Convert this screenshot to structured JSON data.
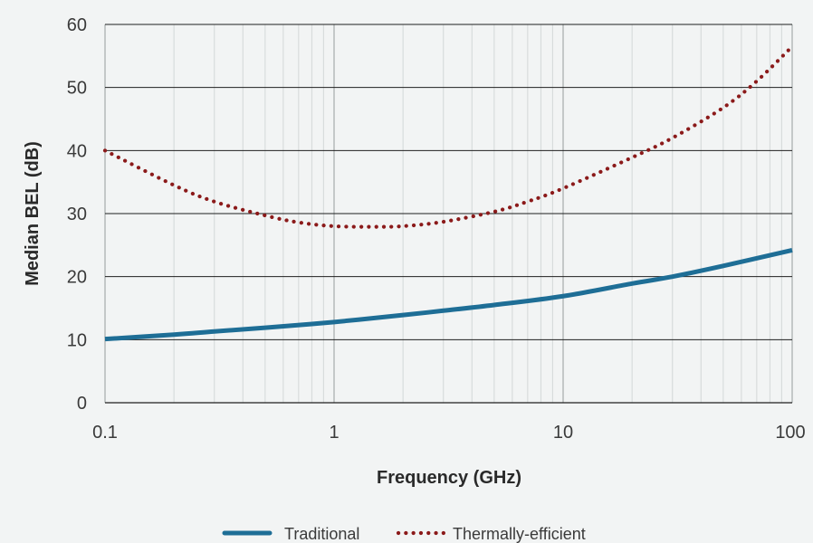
{
  "chart_data": {
    "type": "line",
    "title": "",
    "xlabel": "Frequency (GHz)",
    "ylabel": "Median BEL (dB)",
    "x_scale": "log",
    "xlim": [
      0.1,
      100
    ],
    "ylim": [
      0,
      60
    ],
    "x_ticks": [
      {
        "value": 0.1,
        "label": "0.1"
      },
      {
        "value": 1,
        "label": "1"
      },
      {
        "value": 10,
        "label": "10"
      },
      {
        "value": 100,
        "label": "100"
      }
    ],
    "y_ticks": [
      {
        "value": 0,
        "label": "0"
      },
      {
        "value": 10,
        "label": "10"
      },
      {
        "value": 20,
        "label": "20"
      },
      {
        "value": 30,
        "label": "30"
      },
      {
        "value": 40,
        "label": "40"
      },
      {
        "value": 50,
        "label": "50"
      },
      {
        "value": 60,
        "label": "60"
      }
    ],
    "grid": true,
    "legend_position": "bottom-center",
    "series": [
      {
        "name": "Traditional",
        "color": "#1e6e96",
        "style": "solid",
        "points": [
          [
            0.1,
            10.1
          ],
          [
            0.2,
            10.8
          ],
          [
            0.3,
            11.3
          ],
          [
            0.5,
            11.9
          ],
          [
            1,
            12.8
          ],
          [
            2,
            13.9
          ],
          [
            3,
            14.6
          ],
          [
            5,
            15.5
          ],
          [
            10,
            16.9
          ],
          [
            20,
            18.9
          ],
          [
            30,
            20.0
          ],
          [
            50,
            21.7
          ],
          [
            100,
            24.2
          ]
        ]
      },
      {
        "name": "Thermally-efficient",
        "color": "#8b1a1a",
        "style": "dotted",
        "points": [
          [
            0.1,
            40.0
          ],
          [
            0.2,
            34.5
          ],
          [
            0.3,
            31.9
          ],
          [
            0.5,
            29.7
          ],
          [
            0.7,
            28.6
          ],
          [
            1,
            28.0
          ],
          [
            1.5,
            27.9
          ],
          [
            2,
            28.0
          ],
          [
            3,
            28.7
          ],
          [
            5,
            30.3
          ],
          [
            7,
            31.9
          ],
          [
            10,
            34.0
          ],
          [
            20,
            38.9
          ],
          [
            30,
            42.0
          ],
          [
            50,
            46.8
          ],
          [
            70,
            51.0
          ],
          [
            100,
            56.5
          ]
        ]
      }
    ]
  }
}
